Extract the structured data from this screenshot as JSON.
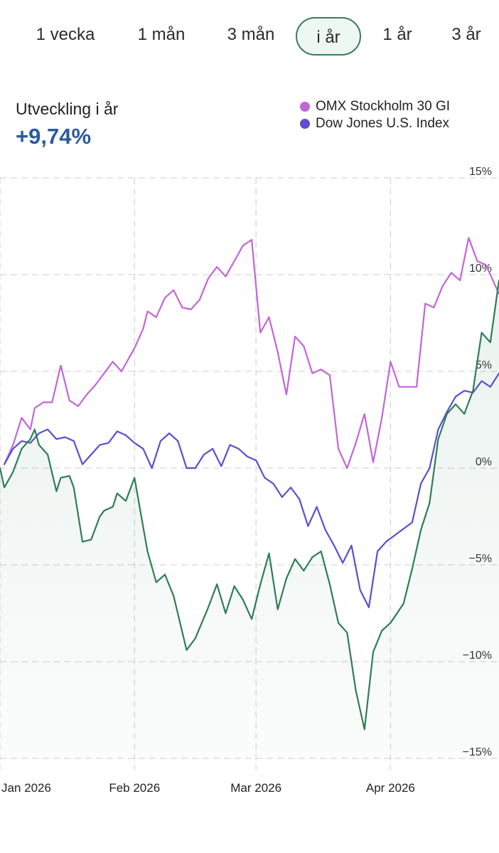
{
  "tabs": [
    {
      "label": "1 vecka",
      "active": false
    },
    {
      "label": "1 mån",
      "active": false
    },
    {
      "label": "3 mån",
      "active": false
    },
    {
      "label": "i år",
      "active": true
    },
    {
      "label": "1 år",
      "active": false
    },
    {
      "label": "3 år",
      "active": false
    }
  ],
  "performance": {
    "label": "Utveckling i år",
    "value": "+9,74%"
  },
  "colors": {
    "main_series": "#2f7d57",
    "omx": "#c266d6",
    "dow": "#5a4fcf",
    "active_tab_border": "#3d7b5a",
    "value_text": "#2a5aa0"
  },
  "chart_data": {
    "type": "line",
    "ylim": [
      -15,
      15
    ],
    "y_ticks": [
      {
        "value": 15,
        "label": "15%"
      },
      {
        "value": 10,
        "label": "10%"
      },
      {
        "value": 5,
        "label": "5%"
      },
      {
        "value": 0,
        "label": "0%"
      },
      {
        "value": -5,
        "label": "−5%"
      },
      {
        "value": -10,
        "label": "−10%"
      },
      {
        "value": -15,
        "label": "−15%"
      }
    ],
    "x_range": [
      "2026-01-01",
      "2026-04-26"
    ],
    "x_ticks": [
      {
        "date": "2026-01-01",
        "label": "Jan 2026"
      },
      {
        "date": "2026-02-01",
        "label": "Feb 2026"
      },
      {
        "date": "2026-03-01",
        "label": "Mar 2026"
      },
      {
        "date": "2026-04-01",
        "label": "Apr 2026"
      }
    ],
    "grid": true,
    "legend": "top-right",
    "series": [
      {
        "name": "",
        "key": "main",
        "area": true,
        "points": [
          [
            "2026-01-01",
            0.0
          ],
          [
            "2026-01-02",
            -1.0
          ],
          [
            "2026-01-04",
            -0.2
          ],
          [
            "2026-01-06",
            1.0
          ],
          [
            "2026-01-08",
            1.5
          ],
          [
            "2026-01-09",
            2.0
          ],
          [
            "2026-01-10",
            1.2
          ],
          [
            "2026-01-12",
            0.7
          ],
          [
            "2026-01-14",
            -1.2
          ],
          [
            "2026-01-15",
            -0.5
          ],
          [
            "2026-01-17",
            -0.4
          ],
          [
            "2026-01-18",
            -1.0
          ],
          [
            "2026-01-20",
            -3.8
          ],
          [
            "2026-01-22",
            -3.7
          ],
          [
            "2026-01-24",
            -2.5
          ],
          [
            "2026-01-25",
            -2.2
          ],
          [
            "2026-01-27",
            -2.0
          ],
          [
            "2026-01-28",
            -1.3
          ],
          [
            "2026-01-30",
            -1.7
          ],
          [
            "2026-02-01",
            -0.5
          ],
          [
            "2026-02-04",
            -4.3
          ],
          [
            "2026-02-06",
            -5.9
          ],
          [
            "2026-02-08",
            -5.5
          ],
          [
            "2026-02-10",
            -6.6
          ],
          [
            "2026-02-13",
            -9.4
          ],
          [
            "2026-02-15",
            -8.8
          ],
          [
            "2026-02-18",
            -7.2
          ],
          [
            "2026-02-20",
            -6.0
          ],
          [
            "2026-02-22",
            -7.5
          ],
          [
            "2026-02-24",
            -6.1
          ],
          [
            "2026-02-26",
            -6.8
          ],
          [
            "2026-02-28",
            -7.8
          ],
          [
            "2026-03-02",
            -6.0
          ],
          [
            "2026-03-04",
            -4.4
          ],
          [
            "2026-03-06",
            -7.3
          ],
          [
            "2026-03-08",
            -5.7
          ],
          [
            "2026-03-10",
            -4.7
          ],
          [
            "2026-03-12",
            -5.3
          ],
          [
            "2026-03-14",
            -4.6
          ],
          [
            "2026-03-16",
            -4.3
          ],
          [
            "2026-03-18",
            -6.0
          ],
          [
            "2026-03-20",
            -8.0
          ],
          [
            "2026-03-22",
            -8.5
          ],
          [
            "2026-03-24",
            -11.5
          ],
          [
            "2026-03-26",
            -13.5
          ],
          [
            "2026-03-28",
            -9.5
          ],
          [
            "2026-03-30",
            -8.4
          ],
          [
            "2026-04-01",
            -8.0
          ],
          [
            "2026-04-04",
            -7.0
          ],
          [
            "2026-04-06",
            -5.2
          ],
          [
            "2026-04-08",
            -3.2
          ],
          [
            "2026-04-10",
            -1.8
          ],
          [
            "2026-04-12",
            1.5
          ],
          [
            "2026-04-14",
            2.8
          ],
          [
            "2026-04-16",
            3.3
          ],
          [
            "2026-04-18",
            2.8
          ],
          [
            "2026-04-20",
            4.0
          ],
          [
            "2026-04-22",
            7.0
          ],
          [
            "2026-04-24",
            6.5
          ],
          [
            "2026-04-26",
            9.7
          ]
        ]
      },
      {
        "name": "OMX Stockholm 30 GI",
        "key": "omx",
        "points": [
          [
            "2026-01-02",
            0.2
          ],
          [
            "2026-01-04",
            1.2
          ],
          [
            "2026-01-06",
            2.6
          ],
          [
            "2026-01-08",
            2.0
          ],
          [
            "2026-01-09",
            3.1
          ],
          [
            "2026-01-11",
            3.4
          ],
          [
            "2026-01-13",
            3.4
          ],
          [
            "2026-01-15",
            5.3
          ],
          [
            "2026-01-17",
            3.5
          ],
          [
            "2026-01-19",
            3.2
          ],
          [
            "2026-01-21",
            3.8
          ],
          [
            "2026-01-23",
            4.3
          ],
          [
            "2026-01-25",
            4.9
          ],
          [
            "2026-01-27",
            5.5
          ],
          [
            "2026-01-29",
            5.0
          ],
          [
            "2026-02-01",
            6.2
          ],
          [
            "2026-02-03",
            7.2
          ],
          [
            "2026-02-04",
            8.1
          ],
          [
            "2026-02-06",
            7.8
          ],
          [
            "2026-02-08",
            8.8
          ],
          [
            "2026-02-10",
            9.2
          ],
          [
            "2026-02-12",
            8.3
          ],
          [
            "2026-02-14",
            8.2
          ],
          [
            "2026-02-16",
            8.7
          ],
          [
            "2026-02-18",
            9.8
          ],
          [
            "2026-02-20",
            10.4
          ],
          [
            "2026-02-22",
            9.9
          ],
          [
            "2026-02-24",
            10.7
          ],
          [
            "2026-02-26",
            11.5
          ],
          [
            "2026-02-28",
            11.8
          ],
          [
            "2026-03-02",
            7.0
          ],
          [
            "2026-03-04",
            7.8
          ],
          [
            "2026-03-06",
            6.0
          ],
          [
            "2026-03-08",
            3.8
          ],
          [
            "2026-03-10",
            6.8
          ],
          [
            "2026-03-12",
            6.3
          ],
          [
            "2026-03-14",
            4.9
          ],
          [
            "2026-03-16",
            5.1
          ],
          [
            "2026-03-18",
            4.8
          ],
          [
            "2026-03-20",
            1.0
          ],
          [
            "2026-03-22",
            0.0
          ],
          [
            "2026-03-24",
            1.3
          ],
          [
            "2026-03-26",
            2.8
          ],
          [
            "2026-03-28",
            0.3
          ],
          [
            "2026-03-30",
            2.6
          ],
          [
            "2026-04-01",
            5.5
          ],
          [
            "2026-04-03",
            4.2
          ],
          [
            "2026-04-07",
            4.2
          ],
          [
            "2026-04-09",
            8.5
          ],
          [
            "2026-04-11",
            8.3
          ],
          [
            "2026-04-13",
            9.4
          ],
          [
            "2026-04-15",
            10.1
          ],
          [
            "2026-04-17",
            9.7
          ],
          [
            "2026-04-19",
            11.9
          ],
          [
            "2026-04-21",
            10.7
          ],
          [
            "2026-04-23",
            10.5
          ],
          [
            "2026-04-26",
            9.0
          ]
        ]
      },
      {
        "name": "Dow Jones U.S. Index",
        "key": "dow",
        "points": [
          [
            "2026-01-02",
            0.2
          ],
          [
            "2026-01-04",
            1.0
          ],
          [
            "2026-01-06",
            1.4
          ],
          [
            "2026-01-08",
            1.3
          ],
          [
            "2026-01-10",
            1.8
          ],
          [
            "2026-01-12",
            2.0
          ],
          [
            "2026-01-14",
            1.5
          ],
          [
            "2026-01-16",
            1.6
          ],
          [
            "2026-01-18",
            1.4
          ],
          [
            "2026-01-20",
            0.2
          ],
          [
            "2026-01-22",
            0.7
          ],
          [
            "2026-01-24",
            1.2
          ],
          [
            "2026-01-26",
            1.3
          ],
          [
            "2026-01-28",
            1.9
          ],
          [
            "2026-01-30",
            1.7
          ],
          [
            "2026-02-01",
            1.3
          ],
          [
            "2026-02-03",
            1.0
          ],
          [
            "2026-02-05",
            0.0
          ],
          [
            "2026-02-07",
            1.4
          ],
          [
            "2026-02-09",
            1.8
          ],
          [
            "2026-02-11",
            1.4
          ],
          [
            "2026-02-13",
            0.0
          ],
          [
            "2026-02-15",
            0.0
          ],
          [
            "2026-02-17",
            0.7
          ],
          [
            "2026-02-19",
            1.0
          ],
          [
            "2026-02-21",
            0.1
          ],
          [
            "2026-02-23",
            1.2
          ],
          [
            "2026-02-25",
            1.0
          ],
          [
            "2026-02-27",
            0.6
          ],
          [
            "2026-03-01",
            0.4
          ],
          [
            "2026-03-03",
            -0.5
          ],
          [
            "2026-03-05",
            -0.8
          ],
          [
            "2026-03-07",
            -1.5
          ],
          [
            "2026-03-09",
            -1.0
          ],
          [
            "2026-03-11",
            -1.6
          ],
          [
            "2026-03-13",
            -3.0
          ],
          [
            "2026-03-15",
            -2.0
          ],
          [
            "2026-03-17",
            -3.2
          ],
          [
            "2026-03-19",
            -4.0
          ],
          [
            "2026-03-21",
            -4.9
          ],
          [
            "2026-03-23",
            -4.0
          ],
          [
            "2026-03-25",
            -6.3
          ],
          [
            "2026-03-27",
            -7.2
          ],
          [
            "2026-03-29",
            -4.3
          ],
          [
            "2026-03-31",
            -3.8
          ],
          [
            "2026-04-03",
            -3.3
          ],
          [
            "2026-04-06",
            -2.8
          ],
          [
            "2026-04-08",
            -0.8
          ],
          [
            "2026-04-10",
            0.0
          ],
          [
            "2026-04-12",
            2.0
          ],
          [
            "2026-04-14",
            2.9
          ],
          [
            "2026-04-16",
            3.7
          ],
          [
            "2026-04-18",
            4.0
          ],
          [
            "2026-04-20",
            3.9
          ],
          [
            "2026-04-22",
            4.5
          ],
          [
            "2026-04-24",
            4.2
          ],
          [
            "2026-04-26",
            4.9
          ]
        ]
      }
    ]
  }
}
